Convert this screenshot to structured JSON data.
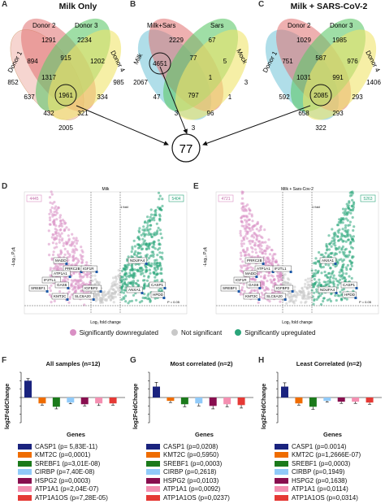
{
  "panels": {
    "A": {
      "letter": "A",
      "title": "Milk Only",
      "sets": [
        "Donor 1",
        "Donor 2",
        "Donor 3",
        "Donor 4"
      ],
      "values": [
        "1291",
        "2234",
        "894",
        "915",
        "1202",
        "852",
        "1317",
        "985",
        "637",
        "1961",
        "334",
        "432",
        "321",
        "2005"
      ]
    },
    "B": {
      "letter": "B",
      "sets": [
        "Milk",
        "Milk+Sars",
        "Sars",
        "Mock"
      ],
      "values": [
        "2229",
        "67",
        "4651",
        "77",
        "5",
        "2067",
        "1",
        "47",
        "797",
        "3",
        "1",
        "96",
        "3",
        "3"
      ]
    },
    "C": {
      "letter": "C",
      "title": "Milk + SARS-CoV-2",
      "sets": [
        "Donor 1",
        "Donor 2",
        "Donor 3",
        "Donor 4"
      ],
      "values": [
        "1029",
        "1985",
        "751",
        "587",
        "976",
        "1031",
        "991",
        "1406",
        "592",
        "2085",
        "293",
        "658",
        "293",
        "322"
      ]
    },
    "center": {
      "value": "77"
    },
    "D": {
      "letter": "D",
      "title": "Milk",
      "left_count": "4445",
      "right_count": "5404",
      "xlabel": "Log₂ fold change",
      "ylabel": "-Log₁₀ Pₐdⱼ",
      "pval": "P = 0.05",
      "fc": "1 fold",
      "genes": [
        "MADD",
        "PRRC2B",
        "ATP1A1",
        "IGF1R",
        "IF2TL1",
        "GAS6",
        "SREBF1",
        "IGFBP2",
        "KMT2C",
        "SLC6A20",
        "NDUFA4",
        "ANXA1",
        "CASP1",
        "HPDD"
      ]
    },
    "E": {
      "letter": "E",
      "title": "Milk + Sars-Cov-2",
      "left_count": "4721",
      "right_count": "5263",
      "xlabel": "Log₂ fold change",
      "ylabel": "-Log₁₀ Pₐdⱼ",
      "pval": "P = 0.05",
      "fc": "1 fold",
      "genes": [
        "PRRC2B",
        "ATP1A1",
        "MADD",
        "IF2TL1",
        "IGF1R",
        "GAS6",
        "SREBF1",
        "IGFBP2",
        "KMT2C",
        "SLC6A20",
        "ANXA1",
        "NDUFA4",
        "CASP1",
        "HPDD"
      ]
    },
    "volcano_legend": {
      "down": "Significantly downregulated",
      "ns": "Not significant",
      "up": "Significantly upregulated",
      "down_color": "#d98fc4",
      "ns_color": "#c8c8c8",
      "up_color": "#2aa57a"
    }
  },
  "chart_data": [
    {
      "type": "bar",
      "letter": "F",
      "title": "All samples (n=12)",
      "xlabel": "Genes",
      "ylabel": "log2FoldChange",
      "ylim": [
        -3,
        3
      ],
      "categories": [
        "CASP1",
        "KMT2C",
        "SREBF1",
        "CIRBP",
        "HSPG2",
        "ATP1A1",
        "ATP1A1OS"
      ],
      "values": [
        2.0,
        -0.7,
        -1.1,
        -0.6,
        -0.8,
        -0.7,
        -0.7
      ],
      "errors": [
        0.25,
        0.2,
        0.25,
        0.15,
        0.2,
        0.25,
        0.2
      ],
      "legend": [
        "CASP1 (p= 5,83E-11)",
        "KMT2C (p=0,0001)",
        "SREBF1 (p=3,01E-08)",
        "CIRBP (p=7,40E-08)",
        "HSPG2 (p=0,0003)",
        "ATP1A1 (p=2,04E-07)",
        "ATP1A1OS (p=7,28E-05)"
      ]
    },
    {
      "type": "bar",
      "letter": "G",
      "title": "Most correlated (n=2)",
      "xlabel": "Genes",
      "ylabel": "log2FoldChange",
      "ylim": [
        -3,
        3
      ],
      "categories": [
        "CASP1",
        "KMT2C",
        "SREBF1",
        "CIRBP",
        "HSPG2",
        "ATP1A1",
        "ATP1A1OS"
      ],
      "values": [
        1.3,
        -0.4,
        -0.8,
        -0.7,
        -1.0,
        -0.8,
        -0.9
      ],
      "errors": [
        0.5,
        0.2,
        0.3,
        0.3,
        0.35,
        0.3,
        0.35
      ],
      "legend": [
        "CASP1 (p=0,0208)",
        "KMT2C (p=0,5950)",
        "SREBF1 (p=0,0003)",
        "CIRBP (p=0,2618)",
        "HSPG2 (p=0,0103)",
        "ATP1A1 (p=0,0092)",
        "ATP1A1OS (p=0,0237)"
      ]
    },
    {
      "type": "bar",
      "letter": "H",
      "title": "Least Correlated (n=2)",
      "xlabel": "Genes",
      "ylabel": "log2FoldChange",
      "ylim": [
        -3,
        3
      ],
      "categories": [
        "CASP1",
        "KMT2C",
        "SREBF1",
        "CIRBP",
        "HSPG2",
        "ATP1A1",
        "ATP1A1OS"
      ],
      "values": [
        1.3,
        -0.7,
        -1.1,
        -0.4,
        -0.5,
        -0.5,
        -0.6
      ],
      "errors": [
        0.45,
        0.2,
        0.3,
        0.15,
        0.2,
        0.2,
        0.2
      ],
      "legend": [
        "CASP1 (p=0.0014)",
        "KMT2C (p=1,2666E-07)",
        "SREBF1 (p=0,0003)",
        "CIRBP (p=0,1949)",
        "HSPG2 (p=0,1638)",
        "ATP1A1 (p=0,0114)",
        "ATP1A1OS (p=0,0314)"
      ]
    }
  ],
  "bar_colors": [
    "#1a237e",
    "#ef6c00",
    "#1b7a1b",
    "#90caf9",
    "#880e4f",
    "#f48fb1",
    "#e53935"
  ]
}
